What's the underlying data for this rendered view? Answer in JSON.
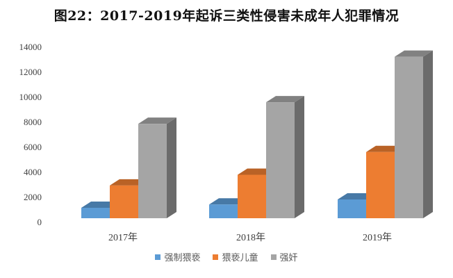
{
  "title": "图22：2017-2019年起诉三类性侵害未成年人犯罪情况",
  "yaxis": {
    "ticks": [
      "14000",
      "12000",
      "10000",
      "8000",
      "6000",
      "4000",
      "2000",
      "0"
    ]
  },
  "xaxis": {
    "categories": [
      "2017年",
      "2018年",
      "2019年"
    ]
  },
  "legend": [
    {
      "label": "强制猥亵",
      "color": "#5B9BD5"
    },
    {
      "label": "猥亵儿童",
      "color": "#ED7D31"
    },
    {
      "label": "强奸",
      "color": "#A5A5A5"
    }
  ],
  "chart_data": {
    "type": "bar",
    "title": "图22：2017-2019年起诉三类性侵害未成年人犯罪情况",
    "categories": [
      "2017年",
      "2018年",
      "2019年"
    ],
    "series": [
      {
        "name": "强制猥亵",
        "color": "#5B9BD5",
        "values": [
          830,
          1100,
          1500
        ]
      },
      {
        "name": "猥亵儿童",
        "color": "#ED7D31",
        "values": [
          2620,
          3470,
          5290
        ]
      },
      {
        "name": "强奸",
        "color": "#A5A5A5",
        "values": [
          7550,
          9270,
          12910
        ]
      }
    ],
    "xlabel": "",
    "ylabel": "",
    "ylim": [
      0,
      14000
    ],
    "yticks": [
      0,
      2000,
      4000,
      6000,
      8000,
      10000,
      12000,
      14000
    ],
    "grid": false,
    "legend_position": "bottom",
    "style": "3d-clustered-column"
  }
}
